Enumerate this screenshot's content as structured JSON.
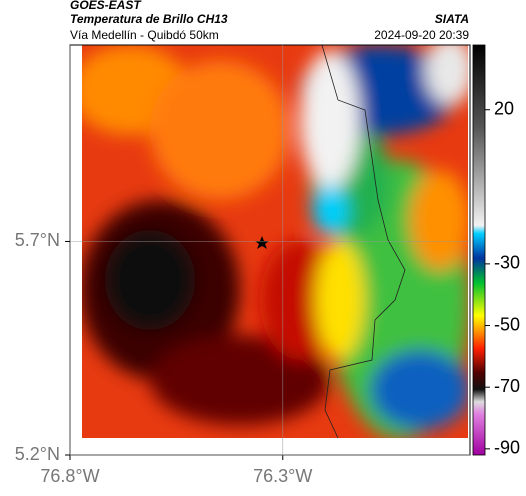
{
  "header": {
    "source": "GOES-EAST",
    "title": "Temperatura de Brillo CH13",
    "subtitle": "Vía Medellín - Quibdó 50km",
    "agency": "SIATA",
    "timestamp": "2024-09-20 20:39"
  },
  "map": {
    "xlim": [
      -76.8,
      -75.86
    ],
    "ylim": [
      5.2,
      6.16
    ],
    "xticks": [
      {
        "value": -76.8,
        "label": "76.8°W"
      },
      {
        "value": -76.3,
        "label": "76.3°W"
      }
    ],
    "yticks": [
      {
        "value": 5.7,
        "label": "5.7°N"
      },
      {
        "value": 5.2,
        "label": "5.2°N"
      }
    ],
    "grid": true
  },
  "colorbar": {
    "lim": [
      -92,
      41
    ],
    "ticks": [
      20,
      -30,
      -50,
      -70,
      -90
    ]
  }
}
